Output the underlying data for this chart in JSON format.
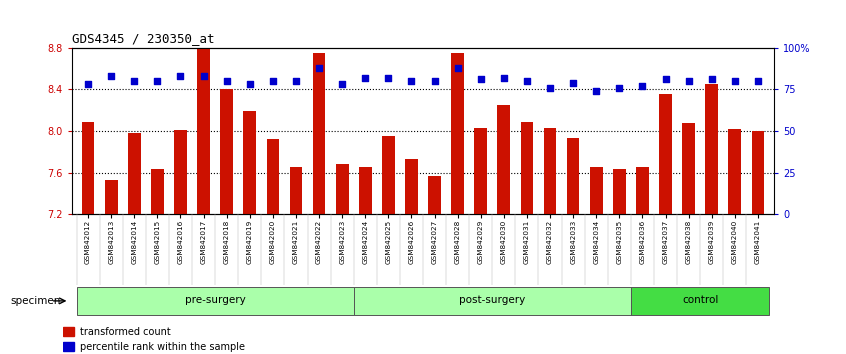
{
  "title": "GDS4345 / 230350_at",
  "samples": [
    "GSM842012",
    "GSM842013",
    "GSM842014",
    "GSM842015",
    "GSM842016",
    "GSM842017",
    "GSM842018",
    "GSM842019",
    "GSM842020",
    "GSM842021",
    "GSM842022",
    "GSM842023",
    "GSM842024",
    "GSM842025",
    "GSM842026",
    "GSM842027",
    "GSM842028",
    "GSM842029",
    "GSM842030",
    "GSM842031",
    "GSM842032",
    "GSM842033",
    "GSM842034",
    "GSM842035",
    "GSM842036",
    "GSM842037",
    "GSM842038",
    "GSM842039",
    "GSM842040",
    "GSM842041"
  ],
  "transformed_count": [
    8.09,
    7.53,
    7.98,
    7.63,
    8.01,
    8.8,
    8.4,
    8.19,
    7.92,
    7.65,
    8.75,
    7.68,
    7.65,
    7.95,
    7.73,
    7.57,
    8.75,
    8.03,
    8.25,
    8.09,
    8.03,
    7.93,
    7.65,
    7.63,
    7.65,
    8.36,
    8.08,
    8.45,
    8.02,
    8.0
  ],
  "percentile_rank": [
    78,
    83,
    80,
    80,
    83,
    83,
    80,
    78,
    80,
    80,
    88,
    78,
    82,
    82,
    80,
    80,
    88,
    81,
    82,
    80,
    76,
    79,
    74,
    76,
    77,
    81,
    80,
    81,
    80,
    80
  ],
  "groups": [
    {
      "name": "pre-surgery",
      "start": 0,
      "end": 12,
      "color": "#AAFFAA"
    },
    {
      "name": "post-surgery",
      "start": 12,
      "end": 24,
      "color": "#AAFFAA"
    },
    {
      "name": "control",
      "start": 24,
      "end": 30,
      "color": "#44DD44"
    }
  ],
  "ymin": 7.2,
  "ymax": 8.8,
  "bar_color": "#CC1100",
  "dot_color": "#0000CC",
  "bg_color": "#FFFFFF",
  "plot_bg": "#FFFFFF",
  "grid_color": "#000000",
  "xlabel_color": "#CC0000",
  "ylabel_right_color": "#0000CC",
  "yticks_left": [
    7.2,
    7.6,
    8.0,
    8.4,
    8.8
  ],
  "yticks_right": [
    0,
    25,
    50,
    75,
    100
  ],
  "yticks_right_labels": [
    "0",
    "25",
    "50",
    "75",
    "100%"
  ],
  "dotted_lines": [
    7.6,
    8.0,
    8.4
  ],
  "legend_items": [
    {
      "label": "transformed count",
      "color": "#CC1100"
    },
    {
      "label": "percentile rank within the sample",
      "color": "#0000CC"
    }
  ]
}
